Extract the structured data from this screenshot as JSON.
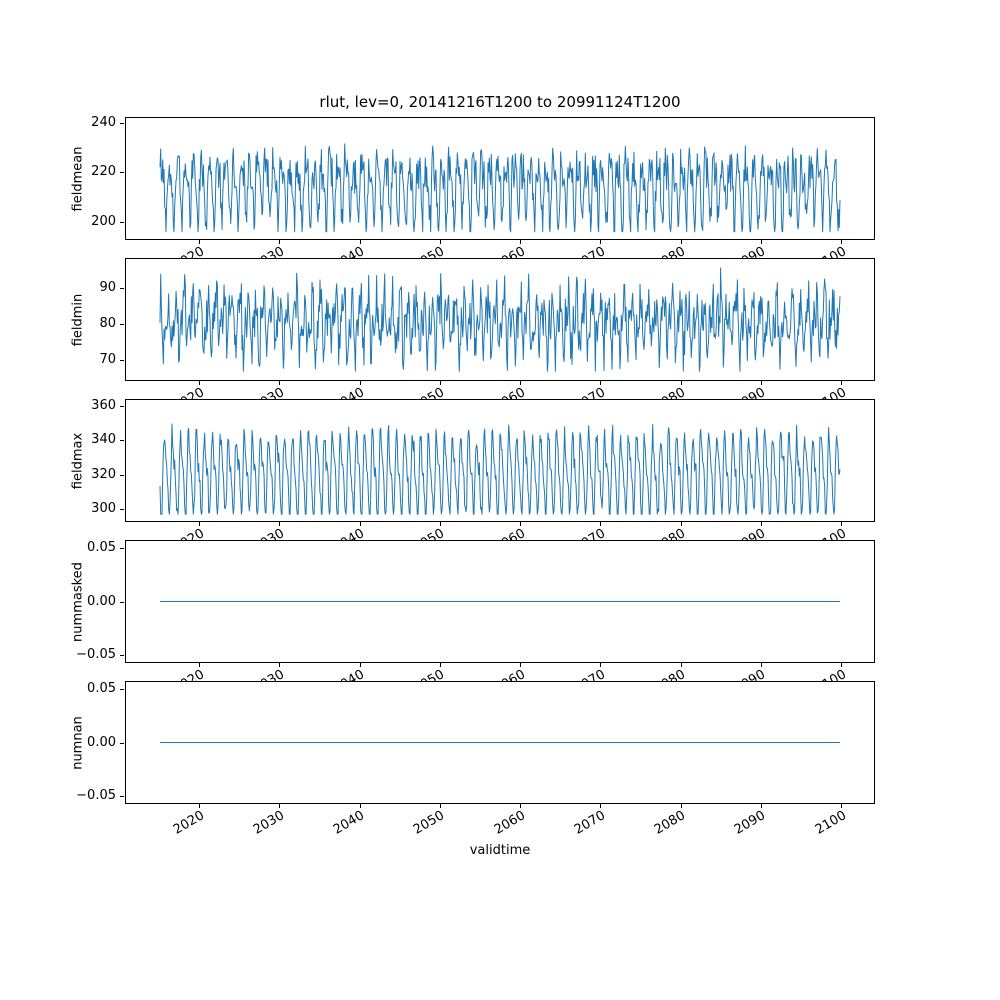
{
  "figure": {
    "background": "#ffffff",
    "axes_color": "#000000"
  },
  "chart_data": {
    "type": "line",
    "title": "rlut, lev=0, 20141216T1200 to 20991124T1200",
    "xlabel": "validtime",
    "x_start": 2014.96,
    "x_end": 2099.9,
    "xlim": [
      2010.71,
      2104.15
    ],
    "xticks": [
      2020,
      2030,
      2040,
      2050,
      2060,
      2070,
      2080,
      2090,
      2100
    ],
    "xtick_labels": [
      "2020",
      "2030",
      "2040",
      "2050",
      "2060",
      "2070",
      "2080",
      "2090",
      "2100"
    ],
    "xtick_rotation_deg": 30,
    "n_points": 1021,
    "line_color": "#1f77b4",
    "legend": "off",
    "grid": "off",
    "subplots": [
      {
        "ylabel": "fieldmean",
        "ylim": [
          192.5,
          242.5
        ],
        "ytick_values": [
          200,
          220,
          240
        ],
        "ytick_labels": [
          "200",
          "220",
          "240"
        ],
        "series": {
          "kind": "noisy",
          "description": "dense noisy time series, approx range 195-240, mean ~214",
          "base": 214,
          "a1": 11,
          "p1": 0.4,
          "a2": 5,
          "p2": 1.9,
          "noise": 8,
          "spike_prob": 0.01,
          "spike_amp": 4,
          "clip": [
            195.5,
            239.8
          ],
          "seed": 42
        }
      },
      {
        "ylabel": "fieldmin",
        "ylim": [
          64.0,
          98.4
        ],
        "ytick_values": [
          70,
          80,
          90
        ],
        "ytick_labels": [
          "70",
          "80",
          "90"
        ],
        "series": {
          "kind": "noisy",
          "description": "dense noisy time series, approx range 66-97, mean ~80",
          "base": 80.5,
          "a1": 6,
          "p1": 2.1,
          "a2": 3.5,
          "p2": 0.6,
          "noise": 6.5,
          "spike_prob": 0.008,
          "spike_amp": 4,
          "clip": [
            66.5,
            96.8
          ],
          "seed": 7
        }
      },
      {
        "ylabel": "fieldmax",
        "ylim": [
          292.5,
          364.0
        ],
        "ytick_values": [
          300,
          320,
          340,
          360
        ],
        "ytick_labels": [
          "300",
          "320",
          "340",
          "360"
        ],
        "series": {
          "kind": "noisy",
          "description": "annual comb pattern, troughs ~297, peaks ~345, rare spikes to ~360, mean ~320",
          "base": 320,
          "a1": 21,
          "p1": 4.2,
          "a2": 8,
          "p2": 2.4,
          "noise": 6,
          "spike_prob": 0.02,
          "spike_amp": 9,
          "clip": [
            296.5,
            361.0
          ],
          "seed": 13
        }
      },
      {
        "ylabel": "nummasked",
        "ylim": [
          -0.0575,
          0.0575
        ],
        "ytick_values": [
          -0.05,
          0.0,
          0.05
        ],
        "ytick_labels": [
          "−0.05",
          "0.00",
          "0.05"
        ],
        "series": {
          "kind": "constant",
          "description": "flat line at 0.00 for entire period",
          "value": 0
        }
      },
      {
        "ylabel": "numnan",
        "ylim": [
          -0.0575,
          0.0575
        ],
        "ytick_values": [
          -0.05,
          0.0,
          0.05
        ],
        "ytick_labels": [
          "−0.05",
          "0.00",
          "0.05"
        ],
        "series": {
          "kind": "constant",
          "description": "flat line at 0.00 for entire period",
          "value": 0
        }
      }
    ]
  }
}
